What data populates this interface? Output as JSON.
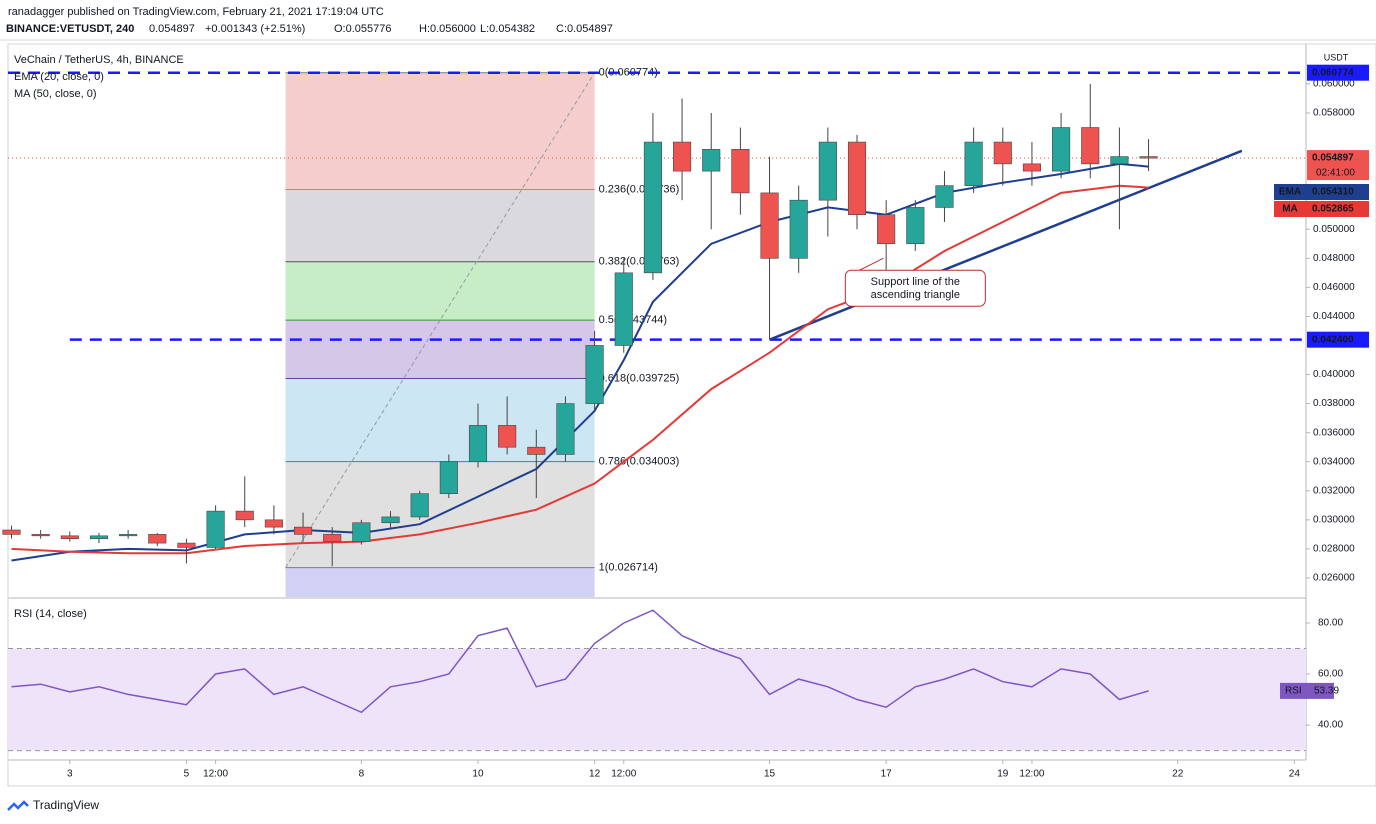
{
  "header": {
    "publisher": "ranadagger published on TradingView.com, February 21, 2021 17:19:04 UTC",
    "symbol": "BINANCE:VETUSDT, 240",
    "last": "0.054897",
    "change": "+0.001343 (+2.51%)",
    "open": "O:0.055776",
    "high": "H:0.056000",
    "low": "L:0.054382",
    "close": "C:0.054897"
  },
  "chart_data": [
    {
      "type": "candlestick",
      "title": "VeChain / TetherUS, 4h, BINANCE",
      "currency": "USDT",
      "up_color": "#26a69a",
      "down_color": "#ef5350",
      "x": [
        2.0,
        2.5,
        3.0,
        3.5,
        4.0,
        4.5,
        5.0,
        5.5,
        6.0,
        6.5,
        7.0,
        7.5,
        8.0,
        8.5,
        9.0,
        9.5,
        10.0,
        10.5,
        11.0,
        11.5,
        12.0,
        12.5,
        13.0,
        13.5,
        14.0,
        14.5,
        15.0,
        15.5,
        16.0,
        16.5,
        17.0,
        17.5,
        18.0,
        18.5,
        19.0,
        19.5,
        20.0,
        20.5,
        21.0,
        21.5
      ],
      "open": [
        0.0293,
        0.029,
        0.0289,
        0.0287,
        0.0289,
        0.029,
        0.0284,
        0.0281,
        0.0306,
        0.03,
        0.0295,
        0.029,
        0.0285,
        0.0298,
        0.0302,
        0.0318,
        0.034,
        0.0365,
        0.035,
        0.0345,
        0.038,
        0.042,
        0.047,
        0.056,
        0.054,
        0.0555,
        0.0525,
        0.048,
        0.052,
        0.056,
        0.051,
        0.049,
        0.0515,
        0.053,
        0.056,
        0.0545,
        0.054,
        0.057,
        0.0545,
        0.055
      ],
      "high": [
        0.0296,
        0.0293,
        0.0292,
        0.0291,
        0.0293,
        0.0291,
        0.0287,
        0.031,
        0.033,
        0.031,
        0.0305,
        0.0295,
        0.03,
        0.0306,
        0.032,
        0.0345,
        0.038,
        0.0385,
        0.0362,
        0.0385,
        0.043,
        0.048,
        0.058,
        0.059,
        0.058,
        0.057,
        0.055,
        0.053,
        0.057,
        0.0565,
        0.052,
        0.052,
        0.054,
        0.057,
        0.057,
        0.056,
        0.058,
        0.06,
        0.057,
        0.0562
      ],
      "low": [
        0.0287,
        0.0287,
        0.0285,
        0.0284,
        0.0287,
        0.0282,
        0.027,
        0.028,
        0.0295,
        0.029,
        0.0285,
        0.0268,
        0.0283,
        0.0294,
        0.03,
        0.0315,
        0.0336,
        0.0345,
        0.0315,
        0.034,
        0.0375,
        0.0415,
        0.0465,
        0.052,
        0.05,
        0.051,
        0.0424,
        0.047,
        0.0495,
        0.05,
        0.047,
        0.0485,
        0.0505,
        0.0525,
        0.053,
        0.053,
        0.0535,
        0.0535,
        0.05,
        0.054
      ],
      "close": [
        0.029,
        0.0289,
        0.0287,
        0.0289,
        0.029,
        0.0284,
        0.0281,
        0.0306,
        0.03,
        0.0295,
        0.029,
        0.0285,
        0.0298,
        0.0302,
        0.0318,
        0.034,
        0.0365,
        0.035,
        0.0345,
        0.038,
        0.042,
        0.047,
        0.056,
        0.054,
        0.0555,
        0.0525,
        0.048,
        0.052,
        0.056,
        0.051,
        0.049,
        0.0515,
        0.053,
        0.056,
        0.0545,
        0.054,
        0.057,
        0.0545,
        0.055,
        0.054897
      ],
      "xlim": [
        1.94,
        24.2
      ],
      "xticks": [
        {
          "value": 3,
          "label": "3"
        },
        {
          "value": 5,
          "label": "5"
        },
        {
          "value": 5.5,
          "label": "12:00"
        },
        {
          "value": 8,
          "label": "8"
        },
        {
          "value": 10,
          "label": "10"
        },
        {
          "value": 12,
          "label": "12"
        },
        {
          "value": 12.5,
          "label": "12:00"
        },
        {
          "value": 15,
          "label": "15"
        },
        {
          "value": 17,
          "label": "17"
        },
        {
          "value": 19,
          "label": "19"
        },
        {
          "value": 19.5,
          "label": "12:00"
        },
        {
          "value": 22,
          "label": "22"
        },
        {
          "value": 24,
          "label": "24"
        }
      ],
      "ylim": [
        0.02469,
        0.06268
      ],
      "yticks": [
        {
          "value": 0.026,
          "label": "0.026000"
        },
        {
          "value": 0.028,
          "label": "0.028000"
        },
        {
          "value": 0.03,
          "label": "0.030000"
        },
        {
          "value": 0.032,
          "label": "0.032000"
        },
        {
          "value": 0.034,
          "label": "0.034000"
        },
        {
          "value": 0.036,
          "label": "0.036000"
        },
        {
          "value": 0.038,
          "label": "0.038000"
        },
        {
          "value": 0.04,
          "label": "0.040000"
        },
        {
          "value": 0.044,
          "label": "0.044000"
        },
        {
          "value": 0.046,
          "label": "0.046000"
        },
        {
          "value": 0.048,
          "label": "0.048000"
        },
        {
          "value": 0.05,
          "label": "0.050000"
        },
        {
          "value": 0.058,
          "label": "0.058000"
        },
        {
          "value": 0.06,
          "label": "0.060000"
        }
      ],
      "lines": [
        {
          "name": "EMA (20, close, 0)",
          "badge": "EMA",
          "color": "#1e3f8f",
          "last_label": "0.054310",
          "x": [
            2.0,
            3.0,
            4.0,
            5.0,
            6.0,
            7.0,
            8.0,
            9.0,
            10.0,
            11.0,
            12.0,
            12.5,
            13.0,
            14.0,
            15.0,
            16.0,
            17.0,
            18.0,
            19.0,
            20.0,
            21.0,
            21.5
          ],
          "values": [
            0.0272,
            0.0278,
            0.028,
            0.0279,
            0.029,
            0.0293,
            0.0291,
            0.0297,
            0.0316,
            0.0335,
            0.0375,
            0.041,
            0.045,
            0.049,
            0.0505,
            0.0515,
            0.051,
            0.0525,
            0.0532,
            0.0538,
            0.0545,
            0.05431
          ]
        },
        {
          "name": "MA (50, close, 0)",
          "badge": "MA",
          "color": "#e53935",
          "last_label": "0.052865",
          "x": [
            2.0,
            3.0,
            4.0,
            5.0,
            6.0,
            7.0,
            8.0,
            9.0,
            10.0,
            11.0,
            12.0,
            13.0,
            14.0,
            15.0,
            16.0,
            17.0,
            18.0,
            19.0,
            20.0,
            21.0,
            21.5
          ],
          "values": [
            0.028,
            0.0278,
            0.0277,
            0.0277,
            0.0282,
            0.0284,
            0.0285,
            0.029,
            0.0298,
            0.0307,
            0.0325,
            0.0355,
            0.039,
            0.0415,
            0.0445,
            0.046,
            0.0485,
            0.0505,
            0.0525,
            0.053,
            0.052865
          ]
        }
      ],
      "last_price": {
        "value": 0.054897,
        "label": "0.054897",
        "countdown": "02:41:00",
        "color": "#ef5350"
      },
      "levels": [
        {
          "value": 0.060774,
          "label": "0.060774",
          "start": 1.94,
          "color": "#1a1aff"
        },
        {
          "value": 0.0424,
          "label": "0.042400",
          "start": 3.0,
          "color": "#1a1aff"
        }
      ],
      "fib": {
        "x": [
          6.7,
          12.0
        ],
        "levels": [
          {
            "value": 0.060774,
            "label": "0(0.060774)",
            "color": "#787b86"
          },
          {
            "value": 0.052736,
            "label": "0.236(0.052736)",
            "color": "#e57373"
          },
          {
            "value": 0.047763,
            "label": "0.382(0.047763)",
            "color": "#555555"
          },
          {
            "value": 0.043744,
            "label": "0.5(0.043744)",
            "color": "#2e9e3a"
          },
          {
            "value": 0.039725,
            "label": "0.618(0.039725)",
            "color": "#6a3d9a"
          },
          {
            "value": 0.034003,
            "label": "0.786(0.034003)",
            "color": "#1e88c8"
          },
          {
            "value": 0.026714,
            "label": "1(0.026714)",
            "color": "#787b86"
          }
        ],
        "zone_colors": [
          "#f5c4c4",
          "#d3d3d8",
          "#bdeabd",
          "#cdbde3",
          "#c4e2f2",
          "#dadada",
          "#c9c9f2"
        ]
      },
      "trendline": {
        "x": [
          15.0,
          23.1
        ],
        "y": [
          0.0424,
          0.0554
        ],
        "color": "#1e3f8f"
      },
      "annotation": {
        "lines": [
          "Support line of the",
          "ascending triangle"
        ],
        "x": 17.5,
        "y": 0.0458,
        "color": "#c62828",
        "target": [
          16.95,
          0.048
        ]
      }
    },
    {
      "type": "line",
      "title": "RSI (14, close)",
      "x": [
        2.0,
        2.5,
        3.0,
        3.5,
        4.0,
        4.5,
        5.0,
        5.5,
        6.0,
        6.5,
        7.0,
        7.5,
        8.0,
        8.5,
        9.0,
        9.5,
        10.0,
        10.5,
        11.0,
        11.5,
        12.0,
        12.5,
        13.0,
        13.5,
        14.0,
        14.5,
        15.0,
        15.5,
        16.0,
        16.5,
        17.0,
        17.5,
        18.0,
        18.5,
        19.0,
        19.5,
        20.0,
        20.5,
        21.0,
        21.5
      ],
      "series": [
        {
          "name": "RSI",
          "color": "#7e57c2",
          "last_label": "53.39",
          "values": [
            55,
            56,
            53,
            55,
            52,
            50,
            48,
            60,
            62,
            52,
            55,
            50,
            45,
            55,
            57,
            60,
            75,
            78,
            55,
            58,
            72,
            80,
            85,
            75,
            70,
            66,
            52,
            58,
            55,
            50,
            47,
            55,
            58,
            62,
            57,
            55,
            62,
            60,
            50,
            53.39
          ]
        }
      ],
      "band": [
        30,
        70
      ],
      "band_color": "#efe3fa",
      "ylim": [
        27.1,
        89
      ],
      "yticks": [
        {
          "value": 40,
          "label": "40.00"
        },
        {
          "value": 60,
          "label": "60.00"
        },
        {
          "value": 80,
          "label": "80.00"
        }
      ]
    }
  ],
  "footer": {
    "logo": "TradingView"
  }
}
